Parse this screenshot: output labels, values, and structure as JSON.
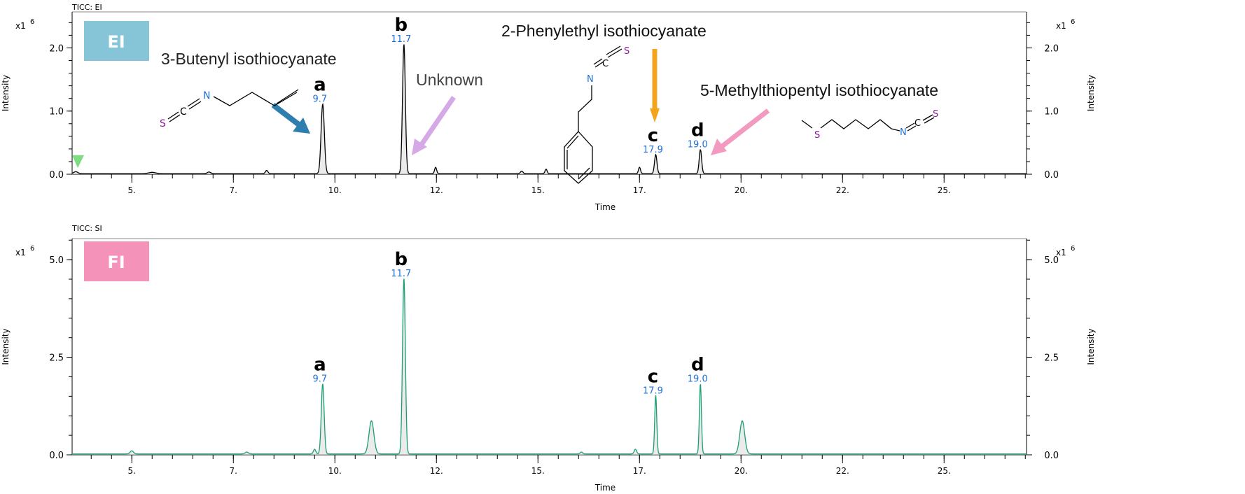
{
  "chart_data": [
    {
      "type": "line",
      "title": "TICC: EI",
      "badge": "EI",
      "badge_color": "#86c5d8",
      "line_color": "#000000",
      "xlabel": "Time",
      "ylabel": "Intensity",
      "y_multiplier": "x1",
      "y_exponent": "6",
      "xlim": [
        3.53,
        27.03
      ],
      "ylim": [
        0,
        2.57
      ],
      "x_ticks": [
        5,
        7.5,
        10,
        12.5,
        15,
        17.5,
        20,
        22.5,
        25
      ],
      "x_tick_labels": [
        "5.",
        "7.",
        "10.",
        "12.",
        "15.",
        "17.",
        "20.",
        "22.",
        "25."
      ],
      "y_ticks": [
        0,
        1,
        2
      ],
      "y_tick_labels": [
        "0.0",
        "1.0",
        "2.0"
      ],
      "peaks": [
        {
          "t": 3.62,
          "h": 0.03,
          "w": 0.05
        },
        {
          "t": 5.5,
          "h": 0.02,
          "w": 0.08
        },
        {
          "t": 6.9,
          "h": 0.025,
          "w": 0.04
        },
        {
          "t": 8.32,
          "h": 0.05,
          "w": 0.03
        },
        {
          "t": 9.7,
          "h": 1.1,
          "w": 0.04
        },
        {
          "t": 11.7,
          "h": 2.05,
          "w": 0.035
        },
        {
          "t": 12.48,
          "h": 0.1,
          "w": 0.025
        },
        {
          "t": 14.6,
          "h": 0.04,
          "w": 0.03
        },
        {
          "t": 15.2,
          "h": 0.07,
          "w": 0.025
        },
        {
          "t": 17.5,
          "h": 0.1,
          "w": 0.025
        },
        {
          "t": 17.9,
          "h": 0.3,
          "w": 0.03
        },
        {
          "t": 19.0,
          "h": 0.38,
          "w": 0.03
        }
      ],
      "peak_labels": [
        {
          "letter": "a",
          "time": "9.7",
          "t": 9.7,
          "h": 1.1
        },
        {
          "letter": "b",
          "time": "11.7",
          "t": 11.7,
          "h": 2.05
        },
        {
          "letter": "c",
          "time": "17.9",
          "t": 17.9,
          "h": 0.3
        },
        {
          "letter": "d",
          "time": "19.0",
          "t": 19.0,
          "h": 0.38
        }
      ],
      "annotations": {
        "butenyl": "3-Butenyl isothiocyanate",
        "unknown": "Unknown",
        "phenylethyl": "2-Phenylethyl isothiocyanate",
        "methylthiopentyl": "5-Methylthiopentyl isothiocyanate"
      },
      "atoms": {
        "S": "S",
        "C": "C",
        "N": "N"
      },
      "arrow_colors": {
        "butenyl": "#2e7fb0",
        "unknown": "#d5a8e6",
        "phenylethyl": "#f2a51c",
        "methylthiopentyl": "#f29ac0"
      }
    },
    {
      "type": "line",
      "title": "TICC: SI",
      "badge": "FI",
      "badge_color": "#f592b9",
      "line_color": "#1a9e72",
      "xlabel": "Time",
      "ylabel": "Intensity",
      "y_multiplier": "x1",
      "y_exponent": "6",
      "xlim": [
        3.53,
        27.03
      ],
      "ylim": [
        0,
        5.54
      ],
      "x_ticks": [
        5,
        7.5,
        10,
        12.5,
        15,
        17.5,
        20,
        22.5,
        25
      ],
      "x_tick_labels": [
        "5.",
        "7.",
        "10.",
        "12.",
        "15.",
        "17.",
        "20.",
        "22.",
        "25."
      ],
      "y_ticks": [
        0,
        2.5,
        5
      ],
      "y_tick_labels": [
        "0.0",
        "2.5",
        "5.0"
      ],
      "peaks": [
        {
          "t": 5.0,
          "h": 0.08,
          "w": 0.04
        },
        {
          "t": 7.83,
          "h": 0.05,
          "w": 0.04
        },
        {
          "t": 9.5,
          "h": 0.12,
          "w": 0.03
        },
        {
          "t": 9.7,
          "h": 1.8,
          "w": 0.035
        },
        {
          "t": 10.9,
          "h": 0.85,
          "w": 0.06
        },
        {
          "t": 11.7,
          "h": 4.5,
          "w": 0.035
        },
        {
          "t": 16.07,
          "h": 0.05,
          "w": 0.03
        },
        {
          "t": 17.4,
          "h": 0.12,
          "w": 0.03
        },
        {
          "t": 17.9,
          "h": 1.5,
          "w": 0.025
        },
        {
          "t": 19.0,
          "h": 1.8,
          "w": 0.025
        },
        {
          "t": 20.03,
          "h": 0.85,
          "w": 0.06
        }
      ],
      "peak_labels": [
        {
          "letter": "a",
          "time": "9.7",
          "t": 9.7,
          "h": 1.8
        },
        {
          "letter": "b",
          "time": "11.7",
          "t": 11.7,
          "h": 4.5
        },
        {
          "letter": "c",
          "time": "17.9",
          "t": 17.9,
          "h": 1.5
        },
        {
          "letter": "d",
          "time": "19.0",
          "t": 19.0,
          "h": 1.8
        }
      ]
    }
  ]
}
